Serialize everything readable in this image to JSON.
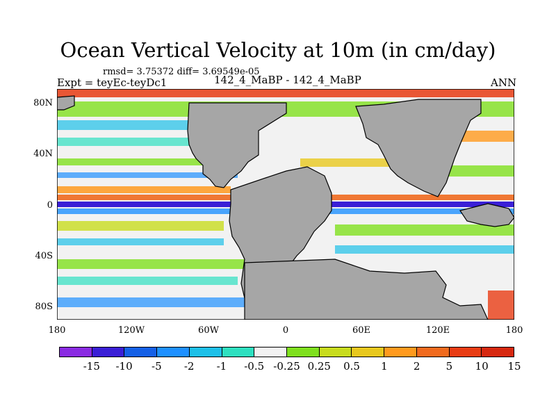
{
  "title": "Ocean Vertical Velocity at 10m (in cm/day)",
  "stats": "rmsd= 3.75372 diff= 3.69549e-05",
  "experiment": "Expt = teyEc-teyDc1",
  "runs": "142_4_MaBP - 142_4_MaBP",
  "season": "ANN",
  "lat_ticks": [
    "80N",
    "40N",
    "0",
    "40S",
    "80S"
  ],
  "lon_ticks": [
    "180",
    "120W",
    "60W",
    "0",
    "60E",
    "120E",
    "180"
  ],
  "colorbar": {
    "colors": [
      "#8a2be2",
      "#3a1fd6",
      "#1560e6",
      "#1e90ff",
      "#1ec0e8",
      "#2ee0c0",
      "#f2f2f2",
      "#7fe01e",
      "#c8dc1e",
      "#e8c81e",
      "#ff9a1e",
      "#f06a1e",
      "#e83c14",
      "#d62810"
    ],
    "labels": [
      "-15",
      "-10",
      "-5",
      "-2",
      "-1",
      "-0.5",
      "-0.25",
      "0.25",
      "0.5",
      "1",
      "2",
      "5",
      "10",
      "15"
    ]
  },
  "land_color": "#a6a6a6",
  "equatorial_band_color": "#3a1fd6"
}
